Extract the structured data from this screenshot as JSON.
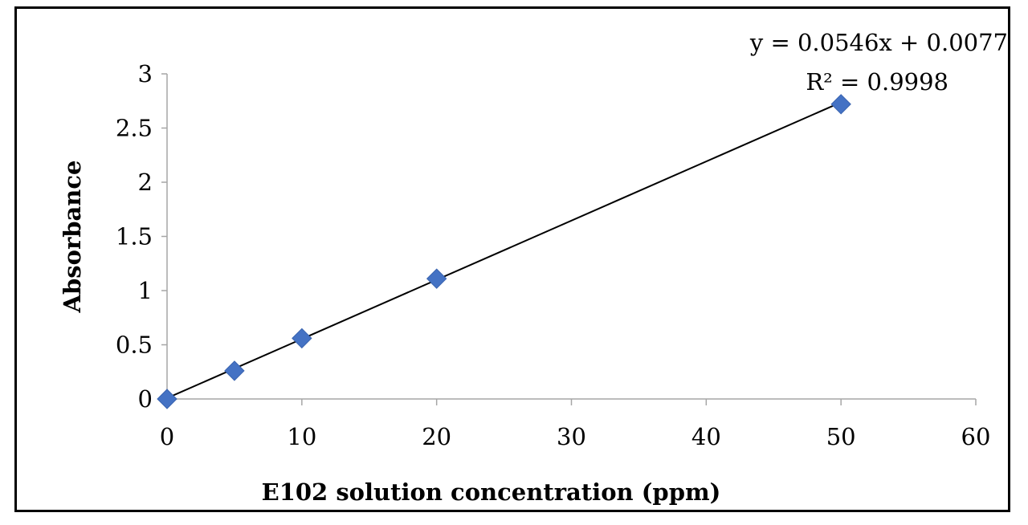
{
  "chart_data": {
    "type": "scatter",
    "xlabel": "E102 solution concentration (ppm)",
    "ylabel": "Absorbance",
    "xlim": [
      0,
      60
    ],
    "ylim": [
      0,
      3
    ],
    "x_ticks": [
      "0",
      "10",
      "20",
      "30",
      "40",
      "50",
      "60"
    ],
    "y_ticks": [
      "0",
      "0.5",
      "1",
      "1.5",
      "2",
      "2.5",
      "3"
    ],
    "series": [
      {
        "x": [
          0,
          5,
          10,
          20,
          50
        ],
        "y": [
          0.0,
          0.26,
          0.56,
          1.11,
          2.72
        ],
        "color": "#4472C4",
        "marker": "diamond"
      }
    ],
    "trendline": {
      "type": "linear",
      "slope": 0.0546,
      "intercept": 0.0077,
      "x_range": [
        0,
        50
      ],
      "color": "#000000"
    },
    "equation_text": "y = 0.0546x + 0.0077",
    "r2_text": "R² = 0.9998",
    "grid": false,
    "legend": "none"
  }
}
